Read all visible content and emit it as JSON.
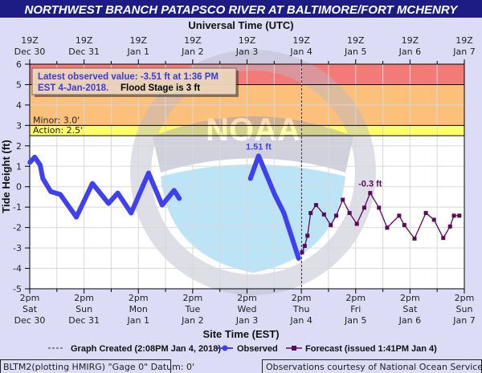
{
  "title": "NORTHWEST BRANCH PATAPSCO RIVER AT BALTIMORE/FORT MCHENRY",
  "chart_data": {
    "type": "line",
    "title": "NORTHWEST BRANCH PATAPSCO RIVER AT BALTIMORE/FORT MCHENRY",
    "top_axis_label": "Universal Time (UTC)",
    "xlabel": "Site Time (EST)",
    "ylabel": "Tide Height (ft)",
    "x_units": "hours since 2pm EST Sat Dec 30",
    "xlim": [
      0,
      192
    ],
    "ylim": [
      -5,
      6
    ],
    "yticks": [
      -5,
      -4,
      -3,
      -2,
      -1,
      0,
      1,
      2,
      3,
      4,
      5,
      6
    ],
    "grid": true,
    "top_ticks": [
      [
        "19Z",
        "Dec 30"
      ],
      [
        "19Z",
        "Dec 31"
      ],
      [
        "19Z",
        "Jan 1"
      ],
      [
        "19Z",
        "Jan 2"
      ],
      [
        "19Z",
        "Jan 3"
      ],
      [
        "19Z",
        "Jan 4"
      ],
      [
        "19Z",
        "Jan 5"
      ],
      [
        "19Z",
        "Jan 6"
      ],
      [
        "19Z",
        "Jan 7"
      ]
    ],
    "bottom_ticks": [
      [
        "2pm",
        "Sat",
        "Dec 30"
      ],
      [
        "2pm",
        "Sun",
        "Dec 31"
      ],
      [
        "2pm",
        "Mon",
        "Jan 1"
      ],
      [
        "2pm",
        "Tue",
        "Jan 2"
      ],
      [
        "2pm",
        "Wed",
        "Jan 3"
      ],
      [
        "2pm",
        "Thu",
        "Jan 4"
      ],
      [
        "2pm",
        "Fri",
        "Jan 5"
      ],
      [
        "2pm",
        "Sat",
        "Jan 6"
      ],
      [
        "2pm",
        "Sun",
        "Jan 7"
      ]
    ],
    "bands": [
      {
        "from": 5,
        "to": 6,
        "color": "#f47a78"
      },
      {
        "from": 3,
        "to": 5,
        "color": "#fcc07a",
        "label": "Minor: 3.0'"
      },
      {
        "from": 2.5,
        "to": 3,
        "color": "#ffff66",
        "label": "Action: 2.5'"
      }
    ],
    "graph_created_hour": 120.1,
    "series": [
      {
        "name": "Observed",
        "color": "#4040f0",
        "segments": [
          [
            [
              0.1,
              1.19
            ],
            [
              2.2,
              1.45
            ],
            [
              4.6,
              1.06
            ],
            [
              5.8,
              0.4
            ],
            [
              9.3,
              -0.24
            ],
            [
              13.5,
              -0.38
            ],
            [
              20.6,
              -1.49
            ],
            [
              27.7,
              0.16
            ],
            [
              34.8,
              -0.82
            ],
            [
              38.9,
              -0.31
            ],
            [
              44.8,
              -1.29
            ],
            [
              52.5,
              0.67
            ],
            [
              58.5,
              -0.9
            ],
            [
              63.8,
              -0.18
            ],
            [
              66.1,
              -0.58
            ]
          ],
          [
            [
              97.5,
              0.4
            ],
            [
              101.1,
              1.51
            ],
            [
              108.2,
              -0.38
            ],
            [
              112.3,
              -1.29
            ],
            [
              118.8,
              -3.51
            ]
          ]
        ]
      },
      {
        "name": "Forecast",
        "color": "#5a0a5a",
        "segments": [
          [
            [
              120.3,
              -3.22
            ],
            [
              121.5,
              -2.9
            ],
            [
              122.7,
              -2.4
            ],
            [
              124.1,
              -1.29
            ],
            [
              126.5,
              -0.9
            ],
            [
              130,
              -1.36
            ],
            [
              133,
              -1.88
            ],
            [
              135.4,
              -1.42
            ],
            [
              138.3,
              -0.64
            ],
            [
              141.3,
              -1.29
            ],
            [
              144.5,
              -1.82
            ],
            [
              147.8,
              -1.03
            ],
            [
              150.4,
              -0.31
            ],
            [
              154.3,
              -1.03
            ],
            [
              157.9,
              -2.01
            ],
            [
              163.2,
              -1.42
            ],
            [
              165.5,
              -1.88
            ],
            [
              170,
              -2.54
            ],
            [
              175,
              -1.29
            ],
            [
              178.6,
              -1.62
            ],
            [
              182.7,
              -2.51
            ],
            [
              185.7,
              -1.95
            ],
            [
              187.4,
              -1.42
            ],
            [
              189.8,
              -1.42
            ]
          ]
        ]
      }
    ],
    "annotations": [
      {
        "text": "1.51 ft",
        "x": 101.1,
        "y": 1.51,
        "color": "#4040f0"
      },
      {
        "text": "-0.3 ft",
        "x": 150.4,
        "y": -0.31,
        "color": "#5a0a5a"
      }
    ]
  },
  "info_box": {
    "line1": "Latest observed value: -3.51  ft at 1:36 PM",
    "line2a": "EST 4-Jan-2018.",
    "line2b": "Flood Stage is 3 ft"
  },
  "legend": {
    "created": "Graph Created (2:08PM Jan 4, 2018)",
    "observed": "Observed",
    "forecast": "Forecast (issued 1:41PM Jan 4)"
  },
  "footer": {
    "left": "BLTM2(plotting HMIRG) \"Gage 0\" Datum: 0'",
    "right": "Observations courtesy of National Ocean Service"
  },
  "watermark": "NOAA"
}
